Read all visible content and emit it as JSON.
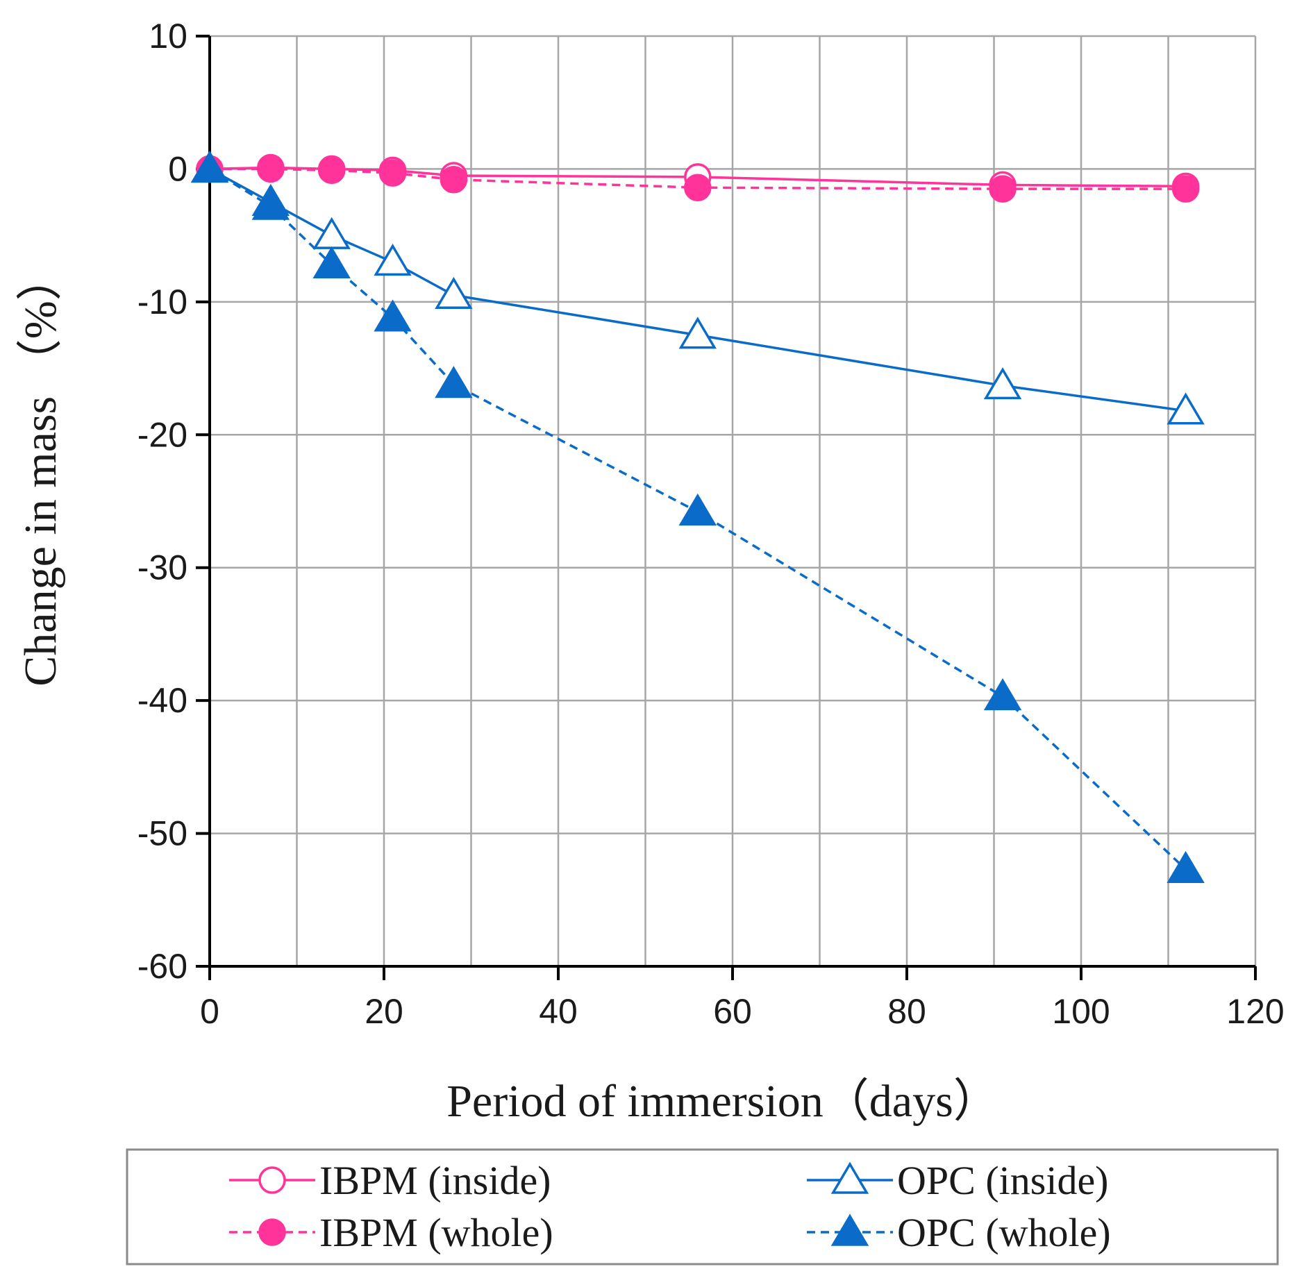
{
  "chart_data": {
    "type": "line",
    "title": "",
    "xlabel": "Period of immersion（days）",
    "ylabel": "Change in mass （%）",
    "xlim": [
      0,
      120
    ],
    "ylim": [
      -60,
      10
    ],
    "x_ticks": [
      0,
      20,
      40,
      60,
      80,
      100,
      120
    ],
    "x_tick_labels": [
      "0",
      "20",
      "40",
      "60",
      "80",
      "100",
      "120"
    ],
    "y_ticks": [
      10,
      0,
      -10,
      -20,
      -30,
      -40,
      -50,
      -60
    ],
    "y_tick_labels": [
      "10",
      "0",
      "-10",
      "-20",
      "-30",
      "-40",
      "-50",
      "-60"
    ],
    "x_grid_step": 10,
    "y_grid_step": 10,
    "grid": true,
    "legend_position": "bottom",
    "series": [
      {
        "name": "IBPM (inside)",
        "color": "#ff3399",
        "marker": "circle-open",
        "dash": "solid",
        "x": [
          0,
          7,
          14,
          21,
          28,
          56,
          91,
          112
        ],
        "values": [
          0,
          0.1,
          0,
          -0.1,
          -0.5,
          -0.6,
          -1.2,
          -1.3
        ]
      },
      {
        "name": "IBPM (whole)",
        "color": "#ff3399",
        "marker": "circle-filled",
        "dash": "dashed",
        "x": [
          0,
          7,
          14,
          21,
          28,
          56,
          91,
          112
        ],
        "values": [
          0,
          0,
          -0.1,
          -0.3,
          -0.8,
          -1.4,
          -1.5,
          -1.5
        ]
      },
      {
        "name": "OPC (inside)",
        "color": "#0a6cc8",
        "marker": "triangle-open",
        "dash": "solid",
        "x": [
          0,
          7,
          14,
          21,
          28,
          56,
          91,
          112
        ],
        "values": [
          0,
          -2.5,
          -5,
          -7,
          -9.5,
          -12.5,
          -16.3,
          -18.2
        ]
      },
      {
        "name": "OPC (whole)",
        "color": "#0a6cc8",
        "marker": "triangle-filled",
        "dash": "dashed",
        "x": [
          0,
          7,
          14,
          21,
          28,
          56,
          91,
          112
        ],
        "values": [
          0,
          -2.8,
          -7.2,
          -11.2,
          -16.2,
          -25.8,
          -39.7,
          -52.7
        ]
      }
    ]
  }
}
